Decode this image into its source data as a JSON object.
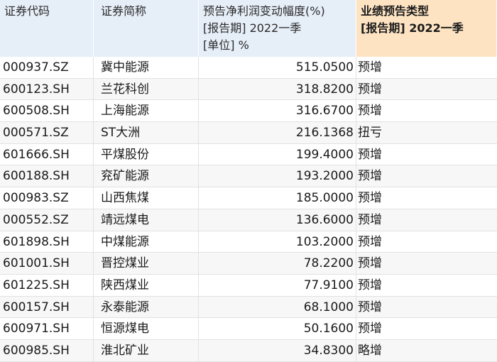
{
  "headers": {
    "code": "证券代码",
    "name": "证券简称",
    "pct": [
      "预告净利润变动幅度(%)",
      "[报告期] 2022一季",
      "[单位] %"
    ],
    "type": [
      "业绩预告类型",
      "[报告期] 2022一季"
    ]
  },
  "rows": [
    {
      "code": "000937.SZ",
      "name": "冀中能源",
      "pct": "515.0500",
      "type": "预增"
    },
    {
      "code": "600123.SH",
      "name": "兰花科创",
      "pct": "318.8200",
      "type": "预增"
    },
    {
      "code": "600508.SH",
      "name": "上海能源",
      "pct": "316.6700",
      "type": "预增"
    },
    {
      "code": "000571.SZ",
      "name": "ST大洲",
      "pct": "216.1368",
      "type": "扭亏"
    },
    {
      "code": "601666.SH",
      "name": "平煤股份",
      "pct": "199.4000",
      "type": "预增"
    },
    {
      "code": "600188.SH",
      "name": "兖矿能源",
      "pct": "193.2000",
      "type": "预增"
    },
    {
      "code": "000983.SZ",
      "name": "山西焦煤",
      "pct": "185.0000",
      "type": "预增"
    },
    {
      "code": "000552.SZ",
      "name": "靖远煤电",
      "pct": "136.6000",
      "type": "预增"
    },
    {
      "code": "601898.SH",
      "name": "中煤能源",
      "pct": "103.2000",
      "type": "预增"
    },
    {
      "code": "601001.SH",
      "name": "晋控煤业",
      "pct": "78.2200",
      "type": "预增"
    },
    {
      "code": "601225.SH",
      "name": "陕西煤业",
      "pct": "77.9100",
      "type": "预增"
    },
    {
      "code": "600157.SH",
      "name": "永泰能源",
      "pct": "68.1000",
      "type": "预增"
    },
    {
      "code": "600971.SH",
      "name": "恒源煤电",
      "pct": "50.1600",
      "type": "预增"
    },
    {
      "code": "600985.SH",
      "name": "淮北矿业",
      "pct": "34.8300",
      "type": "略增"
    }
  ]
}
